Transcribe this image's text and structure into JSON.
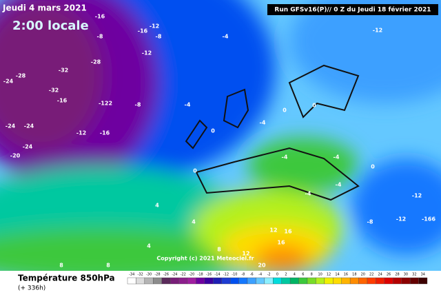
{
  "header": {
    "date": "Jeudi 4 mars 2021",
    "time": "2:00 locale",
    "run": "Run GFSv16(P)// 0 Z du Jeudi 18 février 2021"
  },
  "copyright": "Copyright (c) 2021 Meteociel.fr",
  "footer": {
    "title": "Température 850hPa",
    "lead": "(+ 336h)"
  },
  "map_labels": [
    "-16",
    "-16",
    "-12",
    "-8",
    "-8",
    "-12",
    "-4",
    "-12",
    "-28",
    "-32",
    "-24",
    "-28",
    "-32",
    "-16",
    "-122",
    "-8",
    "-4",
    "-24",
    "-24",
    "-12",
    "-16",
    "-24",
    "-20",
    "-4",
    "0",
    "0",
    "0",
    "-4",
    "-4",
    "0",
    "0",
    "-4",
    "-12",
    "-12",
    "-166",
    "-8",
    "-4",
    "4",
    "4",
    "4",
    "8",
    "8",
    "8",
    "12",
    "16",
    "12",
    "16",
    "20"
  ],
  "legend": {
    "ticks": [
      -34,
      -32,
      -30,
      -28,
      -26,
      -24,
      -22,
      -20,
      -18,
      -16,
      -14,
      -12,
      -10,
      -8,
      -6,
      -4,
      -2,
      0,
      2,
      4,
      6,
      8,
      10,
      12,
      14,
      16,
      18,
      20,
      22,
      24,
      26,
      28,
      30,
      32,
      34
    ],
    "colors": [
      "#ffffff",
      "#dcdcdc",
      "#b4b4b4",
      "#8c8c8c",
      "#5a2a5a",
      "#781e78",
      "#8c1e8c",
      "#a01ea0",
      "#6e00a0",
      "#3c00a0",
      "#1e1eb4",
      "#1e3cd2",
      "#0050f0",
      "#1478ff",
      "#3ca0ff",
      "#64c8ff",
      "#8cf0ff",
      "#00dcdc",
      "#00c8a0",
      "#00b464",
      "#3cc83c",
      "#78dc28",
      "#b4f01e",
      "#f0f000",
      "#ffdc00",
      "#ffb400",
      "#ff8c00",
      "#ff6400",
      "#ff3c00",
      "#f01e00",
      "#dc0000",
      "#b40000",
      "#8c0000",
      "#640000",
      "#3c0000"
    ]
  }
}
